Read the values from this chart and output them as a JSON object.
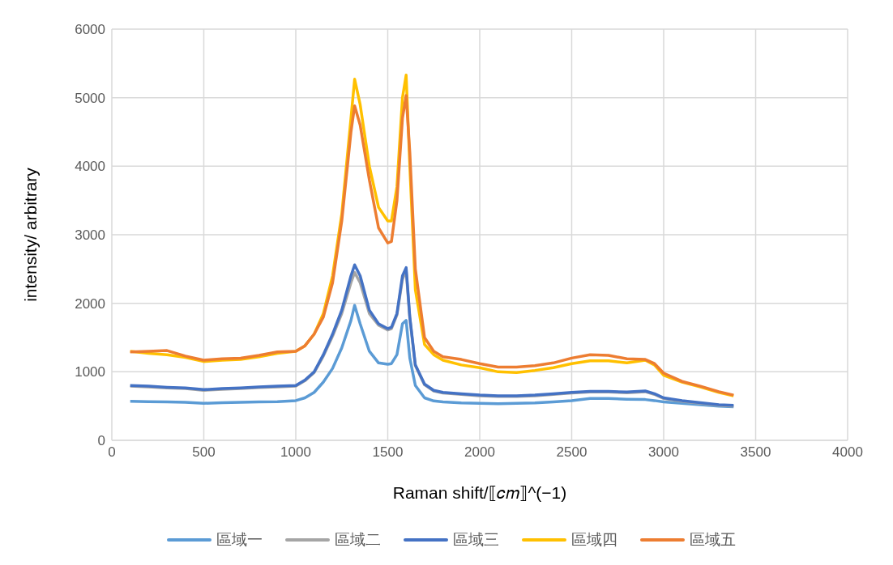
{
  "chart_data": {
    "type": "line",
    "xlabel": "Raman  shift/⟦𝑐𝑚⟧^(−1)",
    "ylabel": "intensity/ arbitrary",
    "x": [
      100,
      200,
      300,
      400,
      500,
      600,
      700,
      800,
      900,
      1000,
      1050,
      1100,
      1150,
      1200,
      1250,
      1300,
      1320,
      1350,
      1400,
      1450,
      1500,
      1520,
      1550,
      1580,
      1600,
      1620,
      1650,
      1700,
      1750,
      1800,
      1900,
      2000,
      2100,
      2200,
      2300,
      2400,
      2500,
      2600,
      2700,
      2800,
      2900,
      2950,
      3000,
      3100,
      3200,
      3300,
      3380
    ],
    "series": [
      {
        "name": "區域一",
        "color": "#5b9bd5",
        "values": [
          570,
          565,
          560,
          555,
          540,
          550,
          555,
          560,
          565,
          580,
          620,
          700,
          850,
          1050,
          1350,
          1750,
          1970,
          1700,
          1300,
          1130,
          1110,
          1120,
          1250,
          1700,
          1750,
          1200,
          800,
          620,
          575,
          560,
          545,
          540,
          535,
          540,
          545,
          560,
          580,
          610,
          610,
          600,
          595,
          580,
          560,
          540,
          520,
          500,
          490
        ]
      },
      {
        "name": "區域二",
        "color": "#a5a5a5",
        "values": [
          790,
          780,
          765,
          755,
          730,
          745,
          755,
          770,
          780,
          790,
          870,
          990,
          1230,
          1520,
          1850,
          2300,
          2450,
          2300,
          1850,
          1680,
          1610,
          1630,
          1830,
          2350,
          2480,
          1780,
          1090,
          810,
          720,
          690,
          670,
          650,
          640,
          640,
          650,
          670,
          690,
          705,
          705,
          695,
          710,
          670,
          610,
          570,
          540,
          510,
          500
        ]
      },
      {
        "name": "區域三",
        "color": "#4472c4",
        "values": [
          800,
          790,
          775,
          765,
          740,
          755,
          765,
          780,
          790,
          800,
          880,
          1000,
          1250,
          1550,
          1900,
          2400,
          2560,
          2400,
          1900,
          1700,
          1630,
          1650,
          1850,
          2400,
          2520,
          1800,
          1100,
          820,
          730,
          700,
          680,
          660,
          650,
          650,
          660,
          680,
          700,
          715,
          715,
          705,
          720,
          680,
          620,
          580,
          550,
          520,
          510
        ]
      },
      {
        "name": "區域四",
        "color": "#ffc000",
        "values": [
          1300,
          1270,
          1250,
          1210,
          1150,
          1170,
          1180,
          1220,
          1270,
          1300,
          1380,
          1550,
          1850,
          2400,
          3300,
          4700,
          5270,
          4900,
          4000,
          3400,
          3200,
          3200,
          3700,
          5000,
          5330,
          4000,
          2200,
          1400,
          1250,
          1170,
          1100,
          1060,
          1000,
          990,
          1020,
          1060,
          1120,
          1160,
          1160,
          1130,
          1170,
          1100,
          950,
          850,
          780,
          700,
          650
        ]
      },
      {
        "name": "區域五",
        "color": "#ed7d31",
        "values": [
          1290,
          1300,
          1310,
          1230,
          1170,
          1190,
          1200,
          1240,
          1290,
          1300,
          1380,
          1550,
          1800,
          2300,
          3200,
          4500,
          4880,
          4600,
          3800,
          3100,
          2880,
          2900,
          3500,
          4700,
          5030,
          4200,
          2500,
          1500,
          1300,
          1220,
          1180,
          1120,
          1070,
          1070,
          1090,
          1130,
          1200,
          1250,
          1240,
          1190,
          1180,
          1120,
          980,
          860,
          790,
          710,
          660
        ]
      }
    ],
    "xlim": [
      0,
      4000
    ],
    "xticks": [
      0,
      500,
      1000,
      1500,
      2000,
      2500,
      3000,
      3500,
      4000
    ],
    "ylim": [
      0,
      6000
    ],
    "yticks": [
      0,
      1000,
      2000,
      3000,
      4000,
      5000,
      6000
    ],
    "grid": true,
    "legend": "bottom",
    "marker": "none",
    "line_style": "solid"
  }
}
